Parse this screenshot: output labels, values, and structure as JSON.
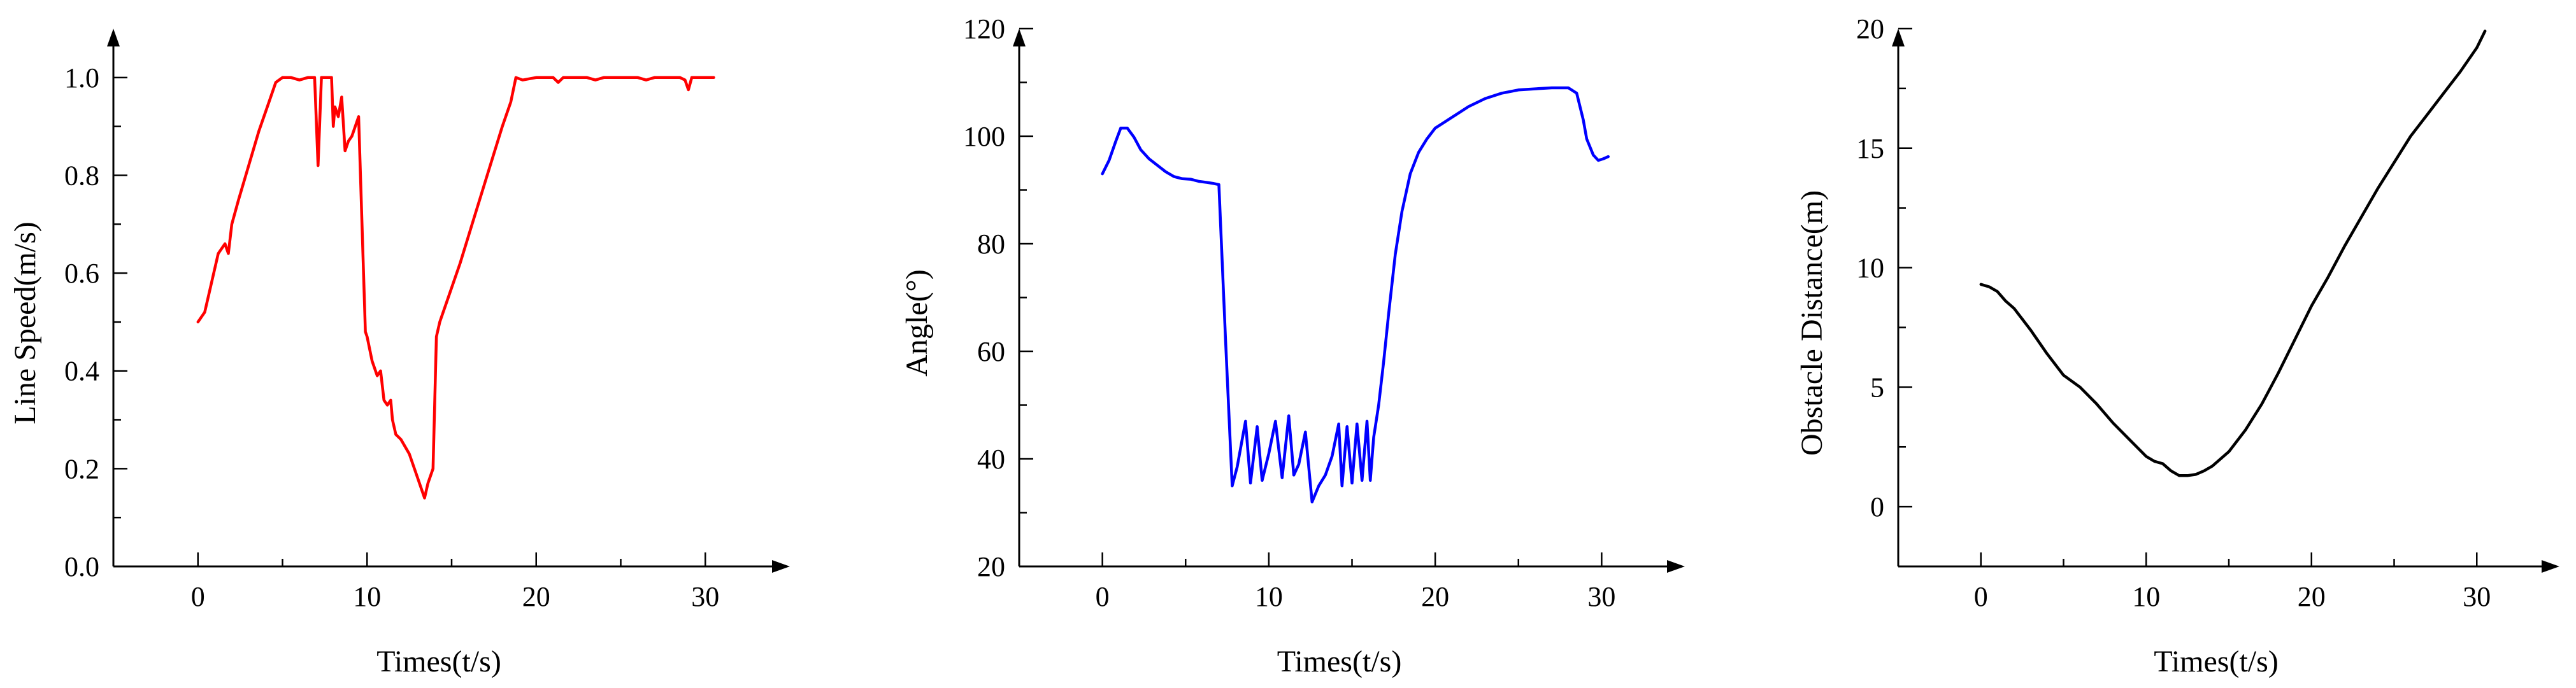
{
  "figure": {
    "background": "#ffffff"
  },
  "chart_data": [
    {
      "type": "line",
      "title": "",
      "xlabel": "Times(t/s)",
      "ylabel": "Line Speed(m/s)",
      "xlim": [
        -5,
        35
      ],
      "ylim": [
        0.0,
        1.1
      ],
      "xticks": [
        0,
        10,
        20,
        30
      ],
      "xtick_labels": [
        "0",
        "10",
        "20",
        "30"
      ],
      "yticks": [
        0.0,
        0.2,
        0.4,
        0.6,
        0.8,
        1.0
      ],
      "ytick_labels": [
        "0.0",
        "0.2",
        "0.4",
        "0.6",
        "0.8",
        "1.0"
      ],
      "grid": false,
      "series": [
        {
          "name": "line-speed",
          "color": "#ff0000",
          "x": [
            0,
            0.4,
            0.8,
            1.2,
            1.6,
            1.8,
            2.0,
            2.4,
            3.0,
            3.6,
            4.2,
            4.6,
            5.0,
            5.5,
            6.0,
            6.5,
            6.9,
            7.1,
            7.3,
            7.5,
            7.9,
            8.0,
            8.1,
            8.3,
            8.5,
            8.7,
            8.9,
            9.1,
            9.5,
            9.7,
            9.9,
            10.0,
            10.3,
            10.6,
            10.8,
            11.0,
            11.2,
            11.4,
            11.5,
            11.7,
            12.0,
            12.5,
            13.0,
            13.4,
            13.6,
            13.9,
            14.1,
            14.3,
            14.8,
            15.5,
            16.3,
            17.1,
            18.0,
            18.5,
            18.8,
            19.2,
            20.0,
            21.0,
            21.3,
            21.6,
            22.0,
            23.0,
            23.5,
            24.0,
            25.0,
            26.0,
            26.5,
            27.0,
            28.0,
            28.5,
            28.8,
            29.0,
            29.2,
            29.5,
            30.0,
            30.5
          ],
          "y": [
            0.5,
            0.52,
            0.58,
            0.64,
            0.66,
            0.64,
            0.7,
            0.75,
            0.82,
            0.89,
            0.95,
            0.99,
            1.0,
            1.0,
            0.995,
            1.0,
            1.0,
            0.82,
            1.0,
            1.0,
            1.0,
            0.9,
            0.94,
            0.92,
            0.96,
            0.85,
            0.87,
            0.88,
            0.92,
            0.7,
            0.48,
            0.47,
            0.42,
            0.39,
            0.4,
            0.34,
            0.33,
            0.34,
            0.3,
            0.27,
            0.26,
            0.23,
            0.18,
            0.14,
            0.17,
            0.2,
            0.47,
            0.5,
            0.55,
            0.62,
            0.71,
            0.8,
            0.9,
            0.95,
            1.0,
            0.995,
            1.0,
            1.0,
            0.99,
            1.0,
            1.0,
            1.0,
            0.995,
            1.0,
            1.0,
            1.0,
            0.995,
            1.0,
            1.0,
            1.0,
            0.995,
            0.975,
            1.0,
            1.0,
            1.0,
            1.0
          ]
        }
      ]
    },
    {
      "type": "line",
      "title": "",
      "xlabel": "Times(t/s)",
      "ylabel": "Angle(°)",
      "xlim": [
        -5,
        35
      ],
      "ylim": [
        20,
        120
      ],
      "xticks": [
        0,
        10,
        20,
        30
      ],
      "xtick_labels": [
        "0",
        "10",
        "20",
        "30"
      ],
      "yticks": [
        20,
        40,
        60,
        80,
        100,
        120
      ],
      "ytick_labels": [
        "20",
        "40",
        "60",
        "80",
        "100",
        "120"
      ],
      "grid": false,
      "series": [
        {
          "name": "angle",
          "color": "#0000ff",
          "x": [
            0,
            0.4,
            0.8,
            1.1,
            1.5,
            1.9,
            2.3,
            2.8,
            3.3,
            3.8,
            4.3,
            4.8,
            5.3,
            5.8,
            6.3,
            6.7,
            7.0,
            7.4,
            7.8,
            8.1,
            8.6,
            8.9,
            9.3,
            9.6,
            10.0,
            10.4,
            10.8,
            11.2,
            11.5,
            11.8,
            12.2,
            12.6,
            13.0,
            13.4,
            13.8,
            14.2,
            14.4,
            14.7,
            15.0,
            15.3,
            15.6,
            15.9,
            16.1,
            16.3,
            16.6,
            16.9,
            17.2,
            17.6,
            18.0,
            18.5,
            19.0,
            19.5,
            20.0,
            20.5,
            21.0,
            21.5,
            22.0,
            23.0,
            24.0,
            25.0,
            26.0,
            27.0,
            27.5,
            28.0,
            28.5,
            28.9,
            29.1,
            29.5,
            29.8,
            30.1,
            30.4
          ],
          "y": [
            93,
            95.5,
            99,
            101.5,
            101.5,
            99.8,
            97.5,
            95.8,
            94.6,
            93.4,
            92.5,
            92.1,
            92.0,
            91.6,
            91.4,
            91.2,
            91.0,
            62,
            35,
            38.5,
            47,
            35.5,
            46,
            36,
            41,
            47,
            36.5,
            48,
            37,
            39,
            45,
            32,
            35,
            37,
            40.5,
            46.5,
            35,
            46,
            35.5,
            46.5,
            36,
            47,
            36,
            44,
            50,
            58,
            67,
            78,
            86,
            93,
            97,
            99.5,
            101.5,
            102.5,
            103.5,
            104.5,
            105.5,
            107,
            108,
            108.6,
            108.8,
            109,
            109,
            109,
            108,
            103,
            99.5,
            96.5,
            95.5,
            95.8,
            96.2
          ]
        }
      ]
    },
    {
      "type": "line",
      "title": "",
      "xlabel": "Times(t/s)",
      "ylabel": "Obstacle Distance(m)",
      "xlim": [
        -5,
        35
      ],
      "ylim": [
        -2.5,
        20
      ],
      "xticks": [
        0,
        10,
        20,
        30
      ],
      "xtick_labels": [
        "0",
        "10",
        "20",
        "30"
      ],
      "yticks": [
        0,
        5,
        10,
        15,
        20
      ],
      "ytick_labels": [
        "0",
        "5",
        "10",
        "15",
        "20"
      ],
      "grid": false,
      "series": [
        {
          "name": "obstacle-distance",
          "color": "#000000",
          "x": [
            0,
            0.5,
            1.0,
            1.5,
            2.0,
            3.0,
            4.0,
            5.0,
            6.0,
            7.0,
            8.0,
            9.0,
            10.0,
            10.5,
            11.0,
            11.5,
            12.0,
            12.5,
            13.0,
            13.5,
            14.0,
            15.0,
            16.0,
            17.0,
            18.0,
            19.0,
            20.0,
            21.0,
            22.0,
            23.0,
            24.0,
            25.0,
            26.0,
            27.0,
            28.0,
            29.0,
            30.0,
            30.5
          ],
          "y": [
            9.3,
            9.2,
            9.0,
            8.6,
            8.3,
            7.4,
            6.4,
            5.5,
            5.0,
            4.3,
            3.5,
            2.8,
            2.1,
            1.9,
            1.8,
            1.5,
            1.3,
            1.3,
            1.35,
            1.5,
            1.7,
            2.3,
            3.2,
            4.3,
            5.6,
            7.0,
            8.4,
            9.6,
            10.9,
            12.1,
            13.3,
            14.4,
            15.5,
            16.4,
            17.3,
            18.2,
            19.2,
            19.9
          ]
        }
      ]
    }
  ]
}
